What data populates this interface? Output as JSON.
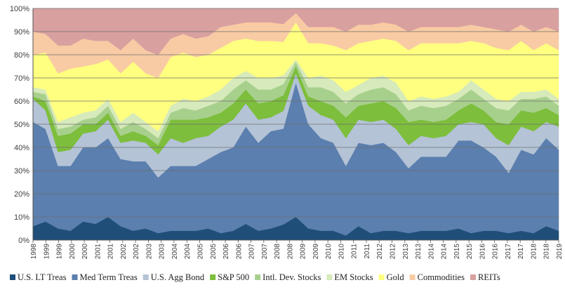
{
  "chart_data": {
    "type": "area",
    "stacked": true,
    "normalized": true,
    "title": "",
    "xlabel": "",
    "ylabel": "",
    "ylim": [
      0,
      100
    ],
    "y_ticks": [
      "0%",
      "10%",
      "20%",
      "30%",
      "40%",
      "50%",
      "60%",
      "70%",
      "80%",
      "90%",
      "100%"
    ],
    "x_tick_labels": [
      "1998",
      "1999",
      "1999",
      "2000",
      "2000",
      "2001",
      "2001",
      "2002",
      "2002",
      "2003",
      "2003",
      "2004",
      "2004",
      "2005",
      "2005",
      "2006",
      "2006",
      "2007",
      "2007",
      "2008",
      "2008",
      "2009",
      "2009",
      "2010",
      "2010",
      "2011",
      "2011",
      "2012",
      "2012",
      "2013",
      "2013",
      "2014",
      "2014",
      "2015",
      "2015",
      "2016",
      "2016",
      "2017",
      "2017",
      "2018",
      "2018",
      "2019"
    ],
    "x": [
      1998.0,
      1998.5,
      1999.0,
      1999.5,
      2000.0,
      2000.5,
      2001.0,
      2001.5,
      2002.0,
      2002.5,
      2003.0,
      2003.5,
      2004.0,
      2004.5,
      2005.0,
      2005.5,
      2006.0,
      2006.5,
      2007.0,
      2007.5,
      2008.0,
      2008.5,
      2009.0,
      2009.5,
      2010.0,
      2010.5,
      2011.0,
      2011.5,
      2012.0,
      2012.5,
      2013.0,
      2013.5,
      2014.0,
      2014.5,
      2015.0,
      2015.5,
      2016.0,
      2016.5,
      2017.0,
      2017.5,
      2018.0,
      2018.5,
      2019.0
    ],
    "legend_position": "bottom",
    "grid": true,
    "series": [
      {
        "name": "U.S. LT Treas",
        "color": "#1f4e79",
        "values": [
          6,
          8,
          5,
          4,
          8,
          7,
          10,
          6,
          4,
          5,
          3,
          4,
          4,
          4,
          5,
          3,
          4,
          7,
          4,
          5,
          7,
          10,
          5,
          4,
          4,
          2,
          6,
          3,
          4,
          4,
          3,
          4,
          4,
          4,
          5,
          3,
          4,
          4,
          3,
          4,
          3,
          6,
          4
        ]
      },
      {
        "name": "Med Term Treas",
        "color": "#5b7fae",
        "values": [
          45,
          40,
          27,
          28,
          32,
          33,
          34,
          29,
          30,
          29,
          24,
          28,
          28,
          28,
          30,
          35,
          36,
          42,
          38,
          42,
          43,
          58,
          45,
          40,
          38,
          30,
          36,
          38,
          38,
          34,
          28,
          32,
          32,
          32,
          38,
          40,
          36,
          32,
          26,
          35,
          34,
          38,
          35
        ]
      },
      {
        "name": "U.S. Agg Bond",
        "color": "#b4c3d6",
        "values": [
          10,
          8,
          6,
          7,
          6,
          7,
          8,
          7,
          9,
          8,
          10,
          12,
          10,
          12,
          10,
          11,
          12,
          10,
          10,
          6,
          8,
          4,
          8,
          10,
          10,
          12,
          10,
          10,
          10,
          10,
          10,
          9,
          8,
          9,
          7,
          8,
          10,
          8,
          12,
          10,
          10,
          7,
          10
        ]
      },
      {
        "name": "S&P 500",
        "color": "#7dbe3c",
        "values": [
          1,
          4,
          7,
          7,
          4,
          3,
          3,
          3,
          4,
          3,
          4,
          8,
          10,
          8,
          8,
          6,
          7,
          6,
          7,
          7,
          7,
          3,
          4,
          6,
          6,
          9,
          6,
          8,
          8,
          9,
          10,
          7,
          7,
          7,
          6,
          8,
          6,
          7,
          9,
          7,
          8,
          6,
          5
        ]
      },
      {
        "name": "Intl. Dev. Stocks",
        "color": "#a8d08d",
        "values": [
          2,
          3,
          3,
          3,
          2,
          3,
          3,
          3,
          4,
          3,
          3,
          3,
          5,
          4,
          5,
          5,
          6,
          4,
          6,
          5,
          5,
          2,
          4,
          6,
          6,
          6,
          5,
          6,
          6,
          6,
          5,
          6,
          6,
          6,
          5,
          6,
          5,
          6,
          6,
          5,
          6,
          5,
          4
        ]
      },
      {
        "name": "EM Stocks",
        "color": "#d7eabb",
        "values": [
          2,
          2,
          3,
          4,
          3,
          3,
          3,
          3,
          4,
          3,
          3,
          3,
          4,
          4,
          4,
          5,
          5,
          4,
          5,
          5,
          4,
          1,
          4,
          5,
          5,
          5,
          4,
          5,
          5,
          5,
          4,
          4,
          4,
          4,
          3,
          4,
          4,
          4,
          4,
          3,
          3,
          3,
          3
        ]
      },
      {
        "name": "Gold",
        "color": "#ffff80",
        "values": [
          14,
          16,
          21,
          21,
          20,
          20,
          17,
          21,
          22,
          21,
          23,
          21,
          20,
          19,
          18,
          18,
          16,
          14,
          16,
          16,
          15,
          16,
          15,
          14,
          15,
          18,
          18,
          16,
          16,
          18,
          22,
          23,
          24,
          23,
          21,
          17,
          20,
          22,
          22,
          22,
          18,
          20,
          21
        ]
      },
      {
        "name": "Commodities",
        "color": "#f8cba4",
        "values": [
          10,
          8,
          12,
          10,
          12,
          10,
          8,
          10,
          10,
          10,
          10,
          8,
          8,
          8,
          8,
          9,
          7,
          7,
          8,
          8,
          8,
          4,
          7,
          7,
          8,
          8,
          8,
          7,
          7,
          7,
          8,
          7,
          7,
          7,
          7,
          7,
          7,
          8,
          8,
          7,
          8,
          7,
          8
        ]
      },
      {
        "name": "REITs",
        "color": "#d9a0a0",
        "values": [
          10,
          11,
          16,
          16,
          13,
          14,
          14,
          18,
          13,
          18,
          20,
          13,
          11,
          13,
          12,
          8,
          7,
          6,
          6,
          6,
          7,
          2,
          8,
          8,
          8,
          10,
          7,
          7,
          6,
          7,
          10,
          8,
          8,
          8,
          8,
          7,
          8,
          9,
          10,
          7,
          10,
          8,
          10
        ]
      }
    ]
  }
}
